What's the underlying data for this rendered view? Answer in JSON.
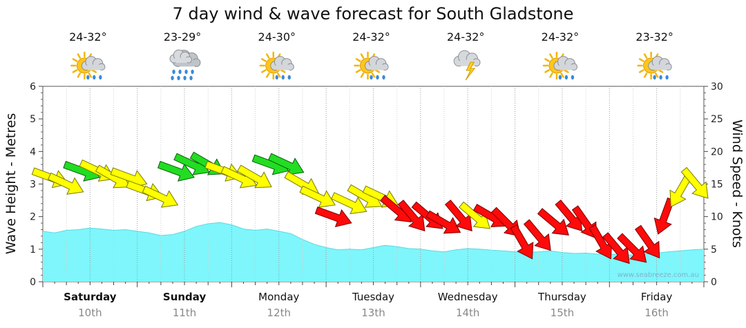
{
  "chart_data": {
    "type": "area",
    "title": "7 day wind & wave forecast for South Gladstone",
    "ylabel_left": "Wave Height - Metres",
    "ylabel_right": "Wind Speed - Knots",
    "ylim_left": [
      0,
      6
    ],
    "ylim_right": [
      0,
      30
    ],
    "yticks_left": [
      "0",
      "1",
      "2",
      "3",
      "4",
      "5",
      "6"
    ],
    "yticks_right": [
      "0",
      "5",
      "10",
      "15",
      "20",
      "25",
      "30"
    ],
    "grid": true,
    "watermark": "www.seabreeze.com.au",
    "days": [
      {
        "name": "Saturday",
        "date": "10th",
        "bold": true,
        "temp": "24-32°",
        "weather": "sun-cloud-showers"
      },
      {
        "name": "Sunday",
        "date": "11th",
        "bold": true,
        "temp": "23-29°",
        "weather": "rain"
      },
      {
        "name": "Monday",
        "date": "12th",
        "bold": false,
        "temp": "24-30°",
        "weather": "sun-cloud-showers"
      },
      {
        "name": "Tuesday",
        "date": "13th",
        "bold": false,
        "temp": "24-32°",
        "weather": "sun-cloud-showers"
      },
      {
        "name": "Wednesday",
        "date": "14th",
        "bold": false,
        "temp": "24-32°",
        "weather": "thunderstorm"
      },
      {
        "name": "Thursday",
        "date": "15th",
        "bold": false,
        "temp": "24-32°",
        "weather": "sun-cloud-showers"
      },
      {
        "name": "Friday",
        "date": "16th",
        "bold": false,
        "temp": "23-32°",
        "weather": "sun-cloud-showers"
      }
    ],
    "wave_series": {
      "name": "Wave Height",
      "unit": "m",
      "day_offset": [
        0,
        0.125,
        0.25,
        0.375,
        0.5,
        0.625,
        0.75,
        0.875,
        1,
        1.125,
        1.25,
        1.375,
        1.5,
        1.625,
        1.75,
        1.875,
        2,
        2.125,
        2.25,
        2.375,
        2.5,
        2.625,
        2.75,
        2.875,
        3,
        3.125,
        3.25,
        3.375,
        3.5,
        3.625,
        3.75,
        3.875,
        4,
        4.125,
        4.25,
        4.375,
        4.5,
        4.625,
        4.75,
        4.875,
        5,
        5.125,
        5.25,
        5.375,
        5.5,
        5.625,
        5.75,
        5.875,
        6,
        6.125,
        6.25,
        6.375,
        6.5,
        6.625,
        6.75,
        6.875,
        7
      ],
      "values": [
        1.55,
        1.5,
        1.58,
        1.6,
        1.65,
        1.62,
        1.58,
        1.6,
        1.55,
        1.5,
        1.42,
        1.45,
        1.55,
        1.7,
        1.78,
        1.82,
        1.75,
        1.62,
        1.58,
        1.62,
        1.55,
        1.48,
        1.3,
        1.15,
        1.05,
        0.98,
        1.0,
        0.98,
        1.05,
        1.12,
        1.08,
        1.02,
        1.0,
        0.95,
        0.92,
        0.98,
        1.02,
        1.0,
        0.97,
        0.95,
        0.92,
        0.9,
        0.92,
        0.95,
        0.9,
        0.87,
        0.88,
        0.85,
        0.85,
        0.83,
        0.82,
        0.85,
        0.88,
        0.92,
        0.95,
        0.98,
        1.0
      ]
    },
    "wind_series": {
      "name": "Wind Speed",
      "unit": "knots",
      "day_offset": [
        0,
        0.1667,
        0.3333,
        0.5,
        0.6667,
        0.8333,
        1,
        1.1667,
        1.3333,
        1.5,
        1.6667,
        1.8333,
        2,
        2.1667,
        2.3333,
        2.5,
        2.6667,
        2.8333,
        3,
        3.1667,
        3.3333,
        3.5,
        3.6667,
        3.8333,
        4,
        4.1667,
        4.3333,
        4.5,
        4.6667,
        4.8333,
        5,
        5.1667,
        5.3333,
        5.5,
        5.6667,
        5.8333,
        6,
        6.1667,
        6.3333,
        6.5,
        6.6667,
        6.8333
      ],
      "values": [
        16,
        15,
        17,
        17,
        16,
        16,
        14,
        13,
        17,
        18,
        18,
        17,
        16,
        16,
        18,
        18,
        15,
        13,
        10,
        12,
        13,
        13,
        11,
        10,
        10,
        9,
        10,
        10,
        10,
        9,
        6,
        7,
        9,
        10,
        9,
        6,
        5,
        5,
        6,
        10,
        14,
        15
      ],
      "colors": [
        "yellow",
        "yellow",
        "green",
        "yellow",
        "yellow",
        "yellow",
        "yellow",
        "yellow",
        "green",
        "green",
        "green",
        "yellow",
        "yellow",
        "yellow",
        "green",
        "green",
        "yellow",
        "yellow",
        "red",
        "yellow",
        "yellow",
        "yellow",
        "red",
        "red",
        "red",
        "red",
        "red",
        "yellow",
        "red",
        "red",
        "red",
        "red",
        "red",
        "red",
        "red",
        "red",
        "red",
        "red",
        "red",
        "red",
        "yellow",
        "yellow"
      ],
      "direction_from_deg": [
        110,
        115,
        110,
        115,
        120,
        110,
        110,
        115,
        110,
        115,
        120,
        110,
        115,
        120,
        110,
        115,
        120,
        115,
        110,
        115,
        120,
        115,
        130,
        140,
        130,
        120,
        140,
        130,
        120,
        135,
        150,
        140,
        130,
        140,
        145,
        150,
        140,
        135,
        145,
        200,
        210,
        140
      ]
    }
  }
}
